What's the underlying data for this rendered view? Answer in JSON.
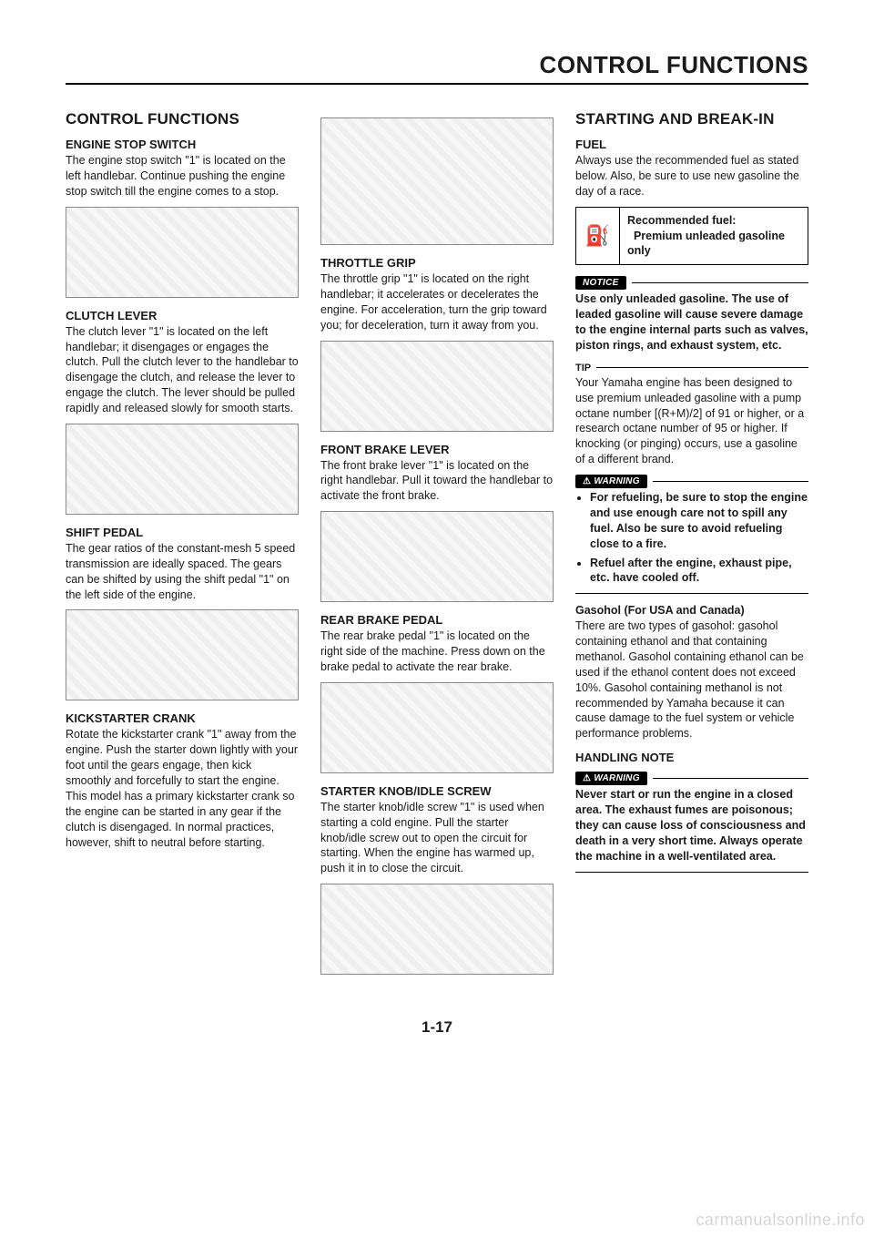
{
  "page": {
    "header": "CONTROL FUNCTIONS",
    "number": "1-17",
    "watermark": "carmanualsonline.info"
  },
  "col1": {
    "title": "CONTROL FUNCTIONS",
    "sections": {
      "engine_stop": {
        "heading": "ENGINE STOP SWITCH",
        "body": "The engine stop switch \"1\" is located on the left handlebar. Continue pushing the engine stop switch till the engine comes to a stop."
      },
      "clutch": {
        "heading": "CLUTCH LEVER",
        "body": "The clutch lever \"1\" is located on the left handlebar; it disengages or engages the clutch. Pull the clutch lever to the handlebar to disengage the clutch, and release the lever to engage the clutch. The lever should be pulled rapidly and released slowly for smooth starts."
      },
      "shift": {
        "heading": "SHIFT PEDAL",
        "body": "The gear ratios of the constant-mesh 5 speed transmission are ideally spaced. The gears can be shifted by using the shift pedal \"1\" on the left side of the engine."
      },
      "kick": {
        "heading": "KICKSTARTER CRANK",
        "body": "Rotate the kickstarter crank \"1\" away from the engine. Push the starter down lightly with your foot until the gears engage, then kick smoothly and forcefully to start the engine. This model has a primary kickstarter crank so the engine can be started in any gear if the clutch is disengaged. In normal practices, however, shift to neutral before starting."
      }
    }
  },
  "col2": {
    "sections": {
      "throttle": {
        "heading": "THROTTLE GRIP",
        "body": "The throttle grip \"1\" is located on the right handlebar; it accelerates or decelerates the engine. For acceleration, turn the grip toward you; for deceleration, turn it away from you."
      },
      "front_brake": {
        "heading": "FRONT BRAKE LEVER",
        "body": "The front brake lever \"1\" is located on the right handlebar. Pull it toward the handlebar to activate the front brake."
      },
      "rear_brake": {
        "heading": "REAR BRAKE PEDAL",
        "body": "The rear brake pedal \"1\" is located on the right side of the machine. Press down on the brake pedal to activate the rear brake."
      },
      "starter": {
        "heading": "STARTER KNOB/IDLE SCREW",
        "body": "The starter knob/idle screw \"1\" is used when starting a cold engine. Pull the starter knob/idle screw out to open the circuit for starting. When the engine has warmed up, push it in to close the circuit."
      }
    }
  },
  "col3": {
    "title": "STARTING AND BREAK-IN",
    "fuel": {
      "heading": "FUEL",
      "intro": "Always use the recommended fuel as stated below. Also, be sure to use new gasoline the day of a race.",
      "box_label": "Recommended fuel:",
      "box_value": "Premium unleaded gasoline only",
      "notice_label": "NOTICE",
      "notice_body": "Use only unleaded gasoline. The use of leaded gasoline will cause severe damage to the engine internal parts such as valves, piston rings, and exhaust system, etc.",
      "tip_label": "TIP",
      "tip_body": "Your Yamaha engine has been designed to use premium unleaded gasoline with a pump octane number [(R+M)/2] of 91 or higher, or a research octane number of 95 or higher. If knocking (or pinging) occurs, use a gasoline of a different brand.",
      "warning1_label": "WARNING",
      "warning1_bullets": [
        "For refueling, be sure to stop the engine and use enough care not to spill any fuel. Also be sure to avoid refueling close to a fire.",
        "Refuel after the engine, exhaust pipe, etc. have cooled off."
      ],
      "gasohol_heading": "Gasohol (For USA and Canada)",
      "gasohol_body": "There are two types of gasohol: gasohol containing ethanol and that containing methanol. Gasohol containing ethanol can be used if the ethanol content does not exceed 10%. Gasohol containing methanol is not recommended by Yamaha because it can cause damage to the fuel system or vehicle performance problems.",
      "handling_heading": "HANDLING NOTE",
      "warning2_label": "WARNING",
      "warning2_body": "Never start or run the engine in a closed area. The exhaust fumes are poisonous; they can cause loss of consciousness and death in a very short time. Always operate the machine in a well-ventilated area."
    }
  }
}
